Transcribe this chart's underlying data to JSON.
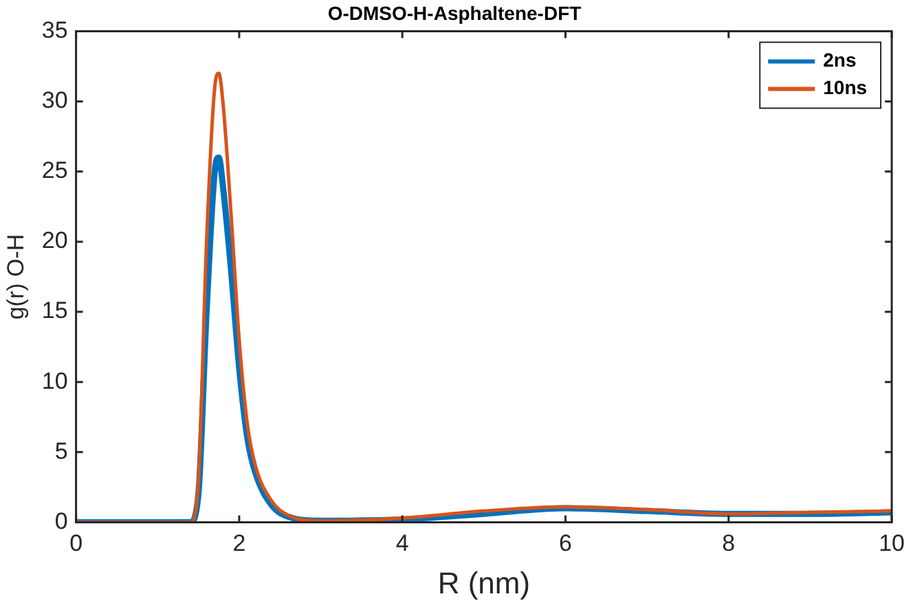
{
  "chart_data": {
    "type": "line",
    "title": "O-DMSO-H-Asphaltene-DFT",
    "xlabel": "R (nm)",
    "ylabel": "g(r) O-H",
    "x": [
      0,
      1.4,
      1.5,
      1.6,
      1.7,
      1.75,
      1.8,
      1.9,
      2,
      2.1,
      2.2,
      2.4,
      2.6,
      3,
      4,
      5,
      6,
      7,
      8,
      9,
      10
    ],
    "series": [
      {
        "name": "2ns",
        "color": "#0072bd",
        "values": [
          0,
          0,
          2,
          15,
          25,
          26,
          24,
          18,
          11,
          6,
          3.5,
          1.2,
          0.4,
          0.1,
          0.2,
          0.6,
          1,
          0.8,
          0.6,
          0.6,
          0.7
        ]
      },
      {
        "name": "10ns",
        "color": "#d95319",
        "values": [
          0,
          0,
          3,
          20,
          31,
          32,
          30,
          22,
          13,
          7,
          4,
          1.5,
          0.5,
          0.1,
          0.3,
          0.8,
          1.1,
          0.9,
          0.6,
          0.7,
          0.8
        ]
      }
    ],
    "xlim": [
      0,
      10
    ],
    "xticks": [
      0,
      2,
      4,
      6,
      8,
      10
    ],
    "ylim": [
      0,
      35
    ],
    "yticks": [
      0,
      5,
      10,
      15,
      20,
      25,
      30,
      35
    ],
    "grid": false,
    "legend": "top right",
    "marker": "none",
    "line_style": "solid"
  }
}
